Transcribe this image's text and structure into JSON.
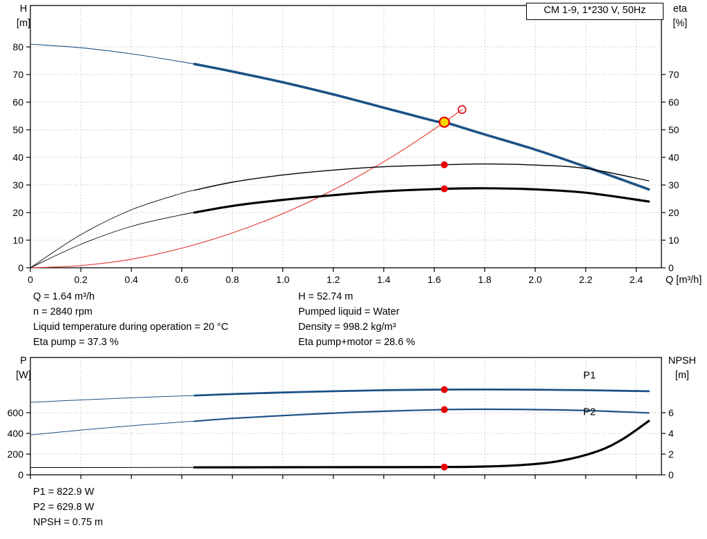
{
  "colors": {
    "curve_blue": "#1b5185",
    "curve_black": "#000000",
    "curve_red": "#e5443a",
    "marker_red": "#e60000",
    "marker_yellow": "#ffd500",
    "grid_gray": "#bdbdbd"
  },
  "labels": {
    "legend": "CM 1-9, 1*230 V, 50Hz",
    "h_title": "H",
    "h_unit": "[m]",
    "eta_title": "eta",
    "eta_unit": "[%]",
    "x_axis_label": "Q [m³/h]",
    "p_title": "P",
    "p_unit": "[W]",
    "npsh_title": "NPSH",
    "npsh_unit": "[m]"
  },
  "info_top": {
    "left": [
      "Q = 1.64 m³/h",
      "n = 2840 rpm",
      "Liquid temperature during operation = 20 °C",
      "Eta pump = 37.3 %"
    ],
    "right": [
      "H = 52.74 m",
      "Pumped liquid = Water",
      "Density = 998.2 kg/m³",
      "Eta pump+motor = 28.6 %"
    ]
  },
  "info_bottom": [
    "P1 = 822.9 W",
    "P2 = 629.8 W",
    "NPSH = 0.75 m"
  ],
  "chart_data": [
    {
      "type": "line",
      "title": "CM 1-9, 1*230 V, 50Hz",
      "xlabel": "Q [m³/h]",
      "ylabel_left": "H [m]",
      "ylabel_right": "eta [%]",
      "xlim": [
        0,
        2.5
      ],
      "ylim_left": [
        0,
        95
      ],
      "ylim_right": [
        0,
        95
      ],
      "grid": true,
      "show_x_labels": true,
      "x_ticks": [
        0,
        0.2,
        0.4,
        0.6,
        0.8,
        1.0,
        1.2,
        1.4,
        1.6,
        1.8,
        2.0,
        2.2,
        2.4
      ],
      "x_tick_labels": [
        "0",
        "0.2",
        "0.4",
        "0.6",
        "0.8",
        "1.0",
        "1.2",
        "1.4",
        "1.6",
        "1.8",
        "2.0",
        "2.2",
        "2.4"
      ],
      "y_ticks_left": [
        0,
        10,
        20,
        30,
        40,
        50,
        60,
        70,
        80
      ],
      "y_tick_labels_left": [
        "0",
        "10",
        "20",
        "30",
        "40",
        "50",
        "60",
        "70",
        "80"
      ],
      "y_ticks_right": [
        0,
        10,
        20,
        30,
        40,
        50,
        60,
        70
      ],
      "y_tick_labels_right": [
        "0",
        "10",
        "20",
        "30",
        "40",
        "50",
        "60",
        "70"
      ],
      "series": [
        {
          "name": "pump-head-curve",
          "axis": "left",
          "color": "#1b5185",
          "width": 3.6,
          "thin_width": 1.1,
          "thin_until": 0.65,
          "x": [
            0,
            0.2,
            0.4,
            0.6,
            0.65,
            0.8,
            1.0,
            1.2,
            1.4,
            1.6,
            1.64,
            1.8,
            2.0,
            2.2,
            2.45
          ],
          "y": [
            81,
            79.7,
            77.5,
            74.6,
            73.8,
            71.1,
            67.2,
            62.8,
            58.0,
            53.2,
            52.74,
            48.3,
            42.8,
            36.6,
            28.4
          ]
        },
        {
          "name": "system-curve",
          "axis": "left",
          "color": "#e5443a",
          "width": 1.2,
          "x": [
            0,
            0.2,
            0.4,
            0.6,
            0.8,
            1.0,
            1.2,
            1.4,
            1.5,
            1.64,
            1.71
          ],
          "y": [
            0,
            0.8,
            3.1,
            7.1,
            12.6,
            19.6,
            28.2,
            38.4,
            44.1,
            52.74,
            57.3
          ]
        },
        {
          "name": "eta-pump-curve",
          "axis": "right",
          "color": "#000000",
          "width": 1.4,
          "thin_width": 0.9,
          "thin_until": 0.65,
          "x": [
            0,
            0.2,
            0.4,
            0.6,
            0.65,
            0.8,
            1.0,
            1.2,
            1.4,
            1.64,
            1.8,
            2.0,
            2.2,
            2.45
          ],
          "y": [
            0,
            12,
            21,
            27,
            28.1,
            31,
            33.6,
            35.4,
            36.6,
            37.3,
            37.6,
            37.2,
            36,
            31.5
          ]
        },
        {
          "name": "eta-pump-motor-curve",
          "axis": "right",
          "color": "#000000",
          "width": 3.2,
          "thin_width": 0.9,
          "thin_until": 0.65,
          "x": [
            0,
            0.2,
            0.4,
            0.6,
            0.65,
            0.8,
            1.0,
            1.2,
            1.4,
            1.64,
            1.8,
            2.0,
            2.2,
            2.45
          ],
          "y": [
            0,
            8.5,
            15,
            19.2,
            20,
            22.4,
            24.6,
            26.3,
            27.7,
            28.6,
            28.8,
            28.4,
            27.2,
            24
          ]
        }
      ],
      "markers": [
        {
          "name": "eta-pump-point-marker",
          "x": 1.64,
          "y": 37.3,
          "axis": "right",
          "r": 5,
          "fill": "#e60000",
          "stroke": "none",
          "sw": 0
        },
        {
          "name": "eta-pump-motor-point-marker",
          "x": 1.64,
          "y": 28.6,
          "axis": "right",
          "r": 5,
          "fill": "#e60000",
          "stroke": "none",
          "sw": 0
        },
        {
          "name": "rated-point-marker",
          "x": 1.71,
          "y": 57.3,
          "axis": "left",
          "r": 5.5,
          "fill": "none",
          "stroke": "#e60000",
          "sw": 1.6
        },
        {
          "name": "duty-point-marker",
          "x": 1.64,
          "y": 52.74,
          "axis": "left",
          "r": 7,
          "fill": "#ffd500",
          "stroke": "#e60000",
          "sw": 2.2
        }
      ],
      "series_labels": []
    },
    {
      "type": "line",
      "title": "",
      "xlabel": "",
      "ylabel_left": "P [W]",
      "ylabel_right": "NPSH [m]",
      "xlim": [
        0,
        2.5
      ],
      "ylim_left": [
        0,
        1133
      ],
      "ylim_right": [
        0,
        11.33
      ],
      "grid": true,
      "show_x_labels": false,
      "x_ticks": [
        0,
        0.2,
        0.4,
        0.6,
        0.8,
        1.0,
        1.2,
        1.4,
        1.6,
        1.8,
        2.0,
        2.2,
        2.4
      ],
      "x_tick_labels": [],
      "y_ticks_left": [
        0,
        200,
        400,
        600
      ],
      "y_tick_labels_left": [
        "0",
        "200",
        "400",
        "600"
      ],
      "y_ticks_right": [
        0,
        2,
        4,
        6
      ],
      "y_tick_labels_right": [
        "0",
        "2",
        "4",
        "6"
      ],
      "series": [
        {
          "name": "p1-curve",
          "axis": "left",
          "color": "#1b5185",
          "width": 2.8,
          "thin_width": 1.0,
          "thin_until": 0.65,
          "x": [
            0,
            0.2,
            0.4,
            0.6,
            0.65,
            0.8,
            1.0,
            1.2,
            1.4,
            1.64,
            1.8,
            2.0,
            2.2,
            2.45
          ],
          "y": [
            700,
            723,
            744,
            762,
            766,
            780,
            795,
            807,
            817,
            822.9,
            824,
            822,
            817,
            807
          ]
        },
        {
          "name": "p2-curve",
          "axis": "left",
          "color": "#1b5185",
          "width": 2.2,
          "thin_width": 1.0,
          "thin_until": 0.65,
          "x": [
            0,
            0.2,
            0.4,
            0.6,
            0.65,
            0.8,
            1.0,
            1.2,
            1.4,
            1.64,
            1.8,
            2.0,
            2.2,
            2.45
          ],
          "y": [
            385,
            432,
            474,
            510,
            517,
            545,
            572,
            596,
            614,
            629.8,
            633,
            630,
            621,
            598
          ]
        },
        {
          "name": "npsh-curve",
          "axis": "right",
          "color": "#000000",
          "width": 3.2,
          "thin_width": 1.0,
          "thin_until": 0.65,
          "x": [
            0,
            0.3,
            0.65,
            1.0,
            1.3,
            1.64,
            1.8,
            1.95,
            2.1,
            2.25,
            2.35,
            2.45
          ],
          "y": [
            0.7,
            0.7,
            0.72,
            0.73,
            0.74,
            0.75,
            0.8,
            0.95,
            1.35,
            2.3,
            3.5,
            5.2
          ]
        }
      ],
      "markers": [
        {
          "name": "p1-point-marker",
          "x": 1.64,
          "y": 822.9,
          "axis": "left",
          "r": 5,
          "fill": "#e60000",
          "stroke": "none",
          "sw": 0
        },
        {
          "name": "p2-point-marker",
          "x": 1.64,
          "y": 629.8,
          "axis": "left",
          "r": 5,
          "fill": "#e60000",
          "stroke": "none",
          "sw": 0
        },
        {
          "name": "npsh-point-marker",
          "x": 1.64,
          "y": 0.75,
          "axis": "right",
          "r": 5,
          "fill": "#e60000",
          "stroke": "none",
          "sw": 0
        }
      ],
      "series_labels": [
        {
          "name": "p1-curve-label",
          "text": "P1",
          "x": 2.19,
          "y": 930,
          "axis": "left",
          "color": "#1b5185"
        },
        {
          "name": "p2-curve-label",
          "text": "P2",
          "x": 2.19,
          "y": 575,
          "axis": "left",
          "color": "#1b5185"
        }
      ]
    }
  ]
}
